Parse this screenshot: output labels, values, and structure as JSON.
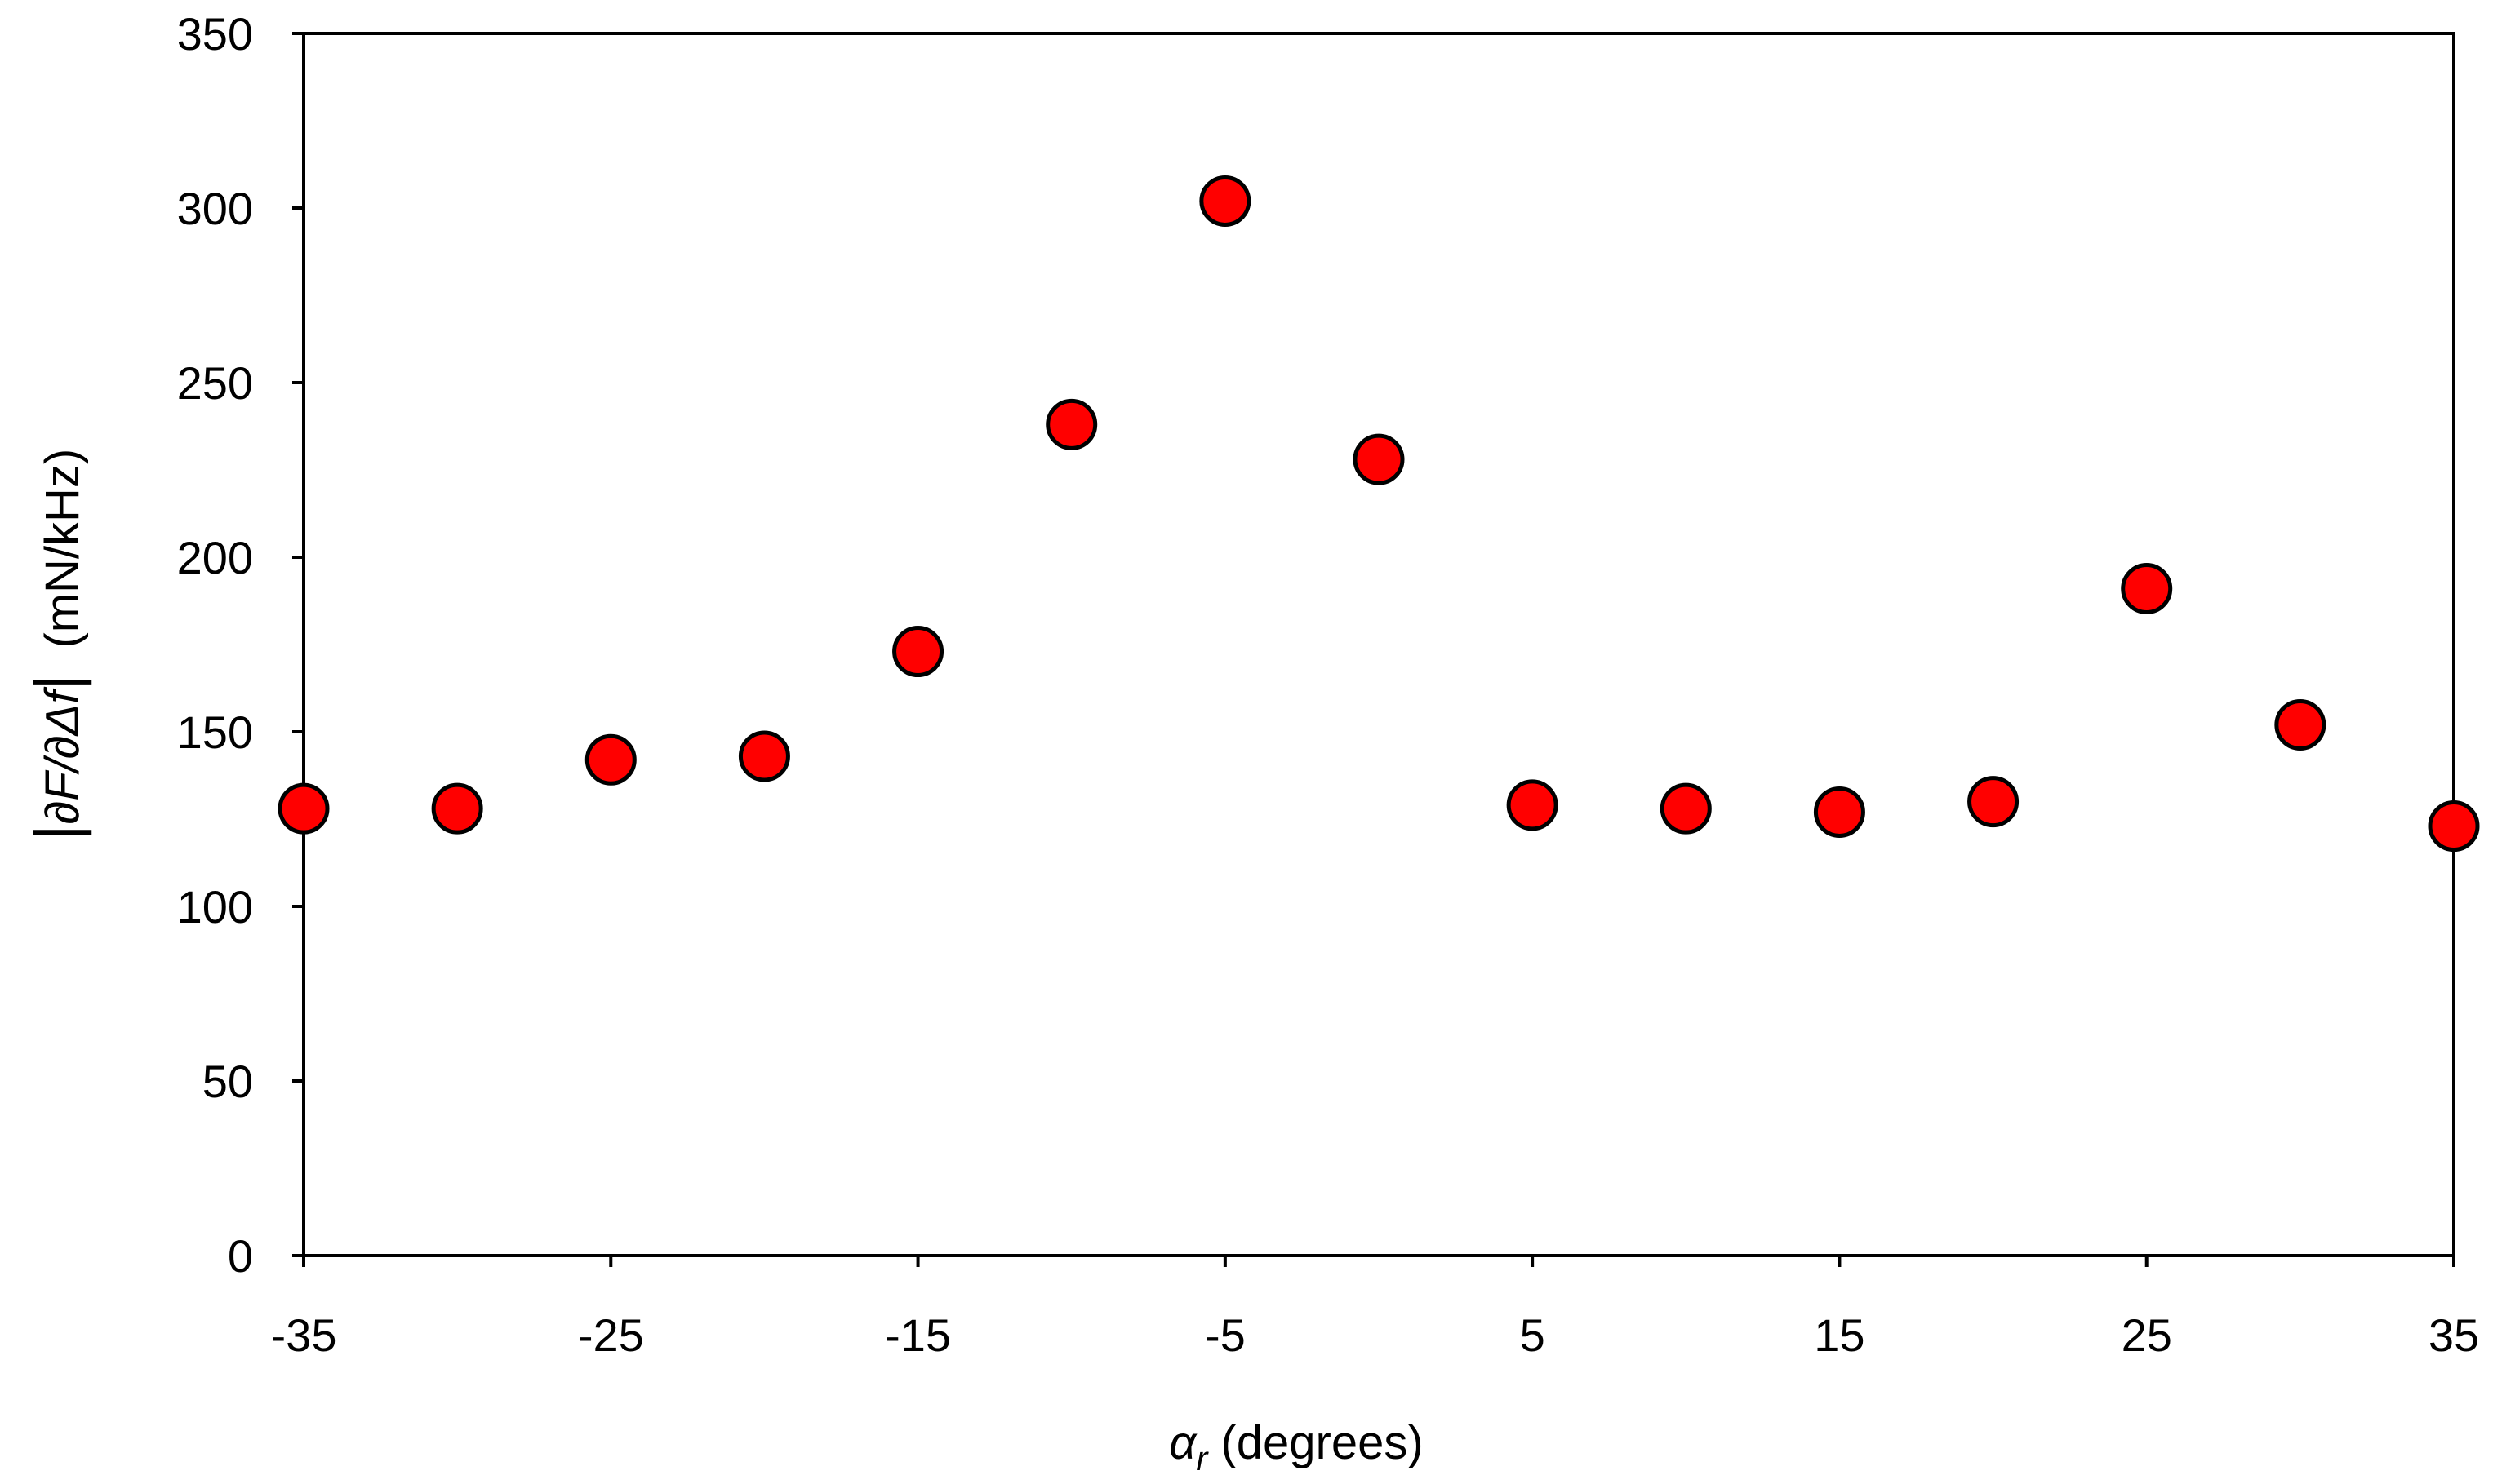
{
  "chart_data": {
    "type": "scatter",
    "title": "",
    "xlabel": {
      "symbol": "α",
      "subscript": "r",
      "rest": " (degrees)"
    },
    "ylabel": {
      "left_bar": "|",
      "expr": "∂F/∂Δf",
      "right_bar": "|",
      "unit": "  (mN/kHz)"
    },
    "xlim": [
      -35,
      35
    ],
    "ylim": [
      0,
      350
    ],
    "xticks": [
      "-35",
      "-25",
      "-15",
      "-5",
      "5",
      "15",
      "25",
      "35"
    ],
    "xtick_values": [
      -35,
      -25,
      -15,
      -5,
      5,
      15,
      25,
      35
    ],
    "yticks": [
      "0",
      "50",
      "100",
      "150",
      "200",
      "250",
      "300",
      "350"
    ],
    "ytick_values": [
      0,
      50,
      100,
      150,
      200,
      250,
      300,
      350
    ],
    "grid": false,
    "legend": "none",
    "marker_color": "#ff0000",
    "marker_edge_color": "#000000",
    "series": [
      {
        "x": [
          -35,
          -30,
          -25,
          -20,
          -15,
          -10,
          -5,
          0,
          5,
          10,
          15,
          20,
          25,
          30,
          35
        ],
        "y": [
          128,
          128,
          142,
          143,
          173,
          238,
          302,
          228,
          129,
          128,
          127,
          130,
          191,
          152,
          123
        ]
      }
    ]
  }
}
